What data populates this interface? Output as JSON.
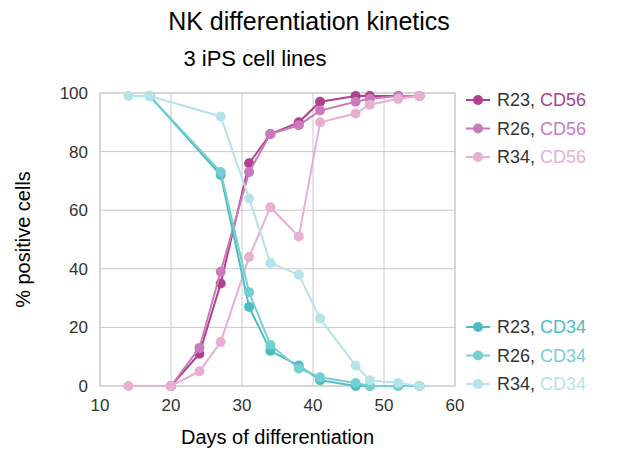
{
  "chart_data": {
    "type": "line",
    "title": "NK differentiation kinetics",
    "subtitle": "3 iPS cell lines",
    "x_label": "Days of differentiation",
    "y_label": "% positive cells",
    "xlim": [
      10,
      60
    ],
    "xticks": [
      10,
      20,
      30,
      40,
      50,
      60
    ],
    "ylim": [
      0,
      100
    ],
    "yticks": [
      0,
      20,
      40,
      60,
      80,
      100
    ],
    "grid": true,
    "legend": "right",
    "marker": "circle",
    "series": [
      {
        "name": "R23, CD56",
        "color": "#b0418f",
        "x": [
          20,
          24,
          27,
          31,
          34,
          38,
          41,
          46,
          48,
          52,
          55
        ],
        "values": [
          0,
          11,
          35,
          76,
          86,
          90,
          97,
          99,
          99,
          99,
          99
        ]
      },
      {
        "name": "R26, CD56",
        "color": "#c97bbd",
        "x": [
          20,
          24,
          27,
          31,
          34,
          38,
          41,
          46,
          48,
          52,
          55
        ],
        "values": [
          0,
          13,
          39,
          73,
          86,
          89,
          94,
          97,
          98,
          99,
          99
        ]
      },
      {
        "name": "R34, CD56",
        "color": "#e9aed3",
        "x": [
          14,
          20,
          24,
          27,
          31,
          34,
          38,
          41,
          46,
          48,
          52,
          55
        ],
        "values": [
          0,
          0,
          5,
          15,
          44,
          61,
          51,
          90,
          93,
          96,
          98,
          99
        ]
      },
      {
        "name": "R23, CD34",
        "color": "#4dbdc2",
        "x": [
          17,
          27,
          31,
          34,
          38,
          41,
          46,
          48,
          52,
          55
        ],
        "values": [
          99,
          72,
          27,
          12,
          7,
          2,
          0,
          0,
          0,
          0
        ]
      },
      {
        "name": "R26, CD34",
        "color": "#74cfd3",
        "x": [
          17,
          27,
          31,
          34,
          38,
          41,
          46,
          48,
          52,
          55
        ],
        "values": [
          99,
          73,
          32,
          14,
          6,
          3,
          1,
          0,
          0,
          0
        ]
      },
      {
        "name": "R34, CD34",
        "color": "#b5e3ea",
        "x": [
          14,
          17,
          27,
          31,
          34,
          38,
          41,
          46,
          48,
          52,
          55
        ],
        "values": [
          99,
          99,
          92,
          64,
          42,
          38,
          23,
          7,
          2,
          1,
          0
        ]
      }
    ]
  }
}
